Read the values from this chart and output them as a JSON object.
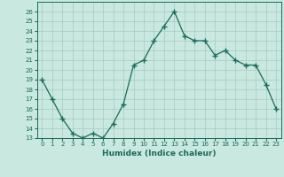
{
  "x": [
    0,
    1,
    2,
    3,
    4,
    5,
    6,
    7,
    8,
    9,
    10,
    11,
    12,
    13,
    14,
    15,
    16,
    17,
    18,
    19,
    20,
    21,
    22,
    23
  ],
  "y": [
    19,
    17,
    15,
    13.5,
    13,
    13.5,
    13,
    14.5,
    16.5,
    20.5,
    21,
    23,
    24.5,
    26,
    23.5,
    23,
    23,
    21.5,
    22,
    21,
    20.5,
    20.5,
    18.5,
    16
  ],
  "xlabel": "Humidex (Indice chaleur)",
  "ylim": [
    13,
    27
  ],
  "xlim": [
    -0.5,
    23.5
  ],
  "yticks": [
    13,
    14,
    15,
    16,
    17,
    18,
    19,
    20,
    21,
    22,
    23,
    24,
    25,
    26
  ],
  "xtick_labels": [
    "0",
    "1",
    "2",
    "3",
    "4",
    "5",
    "6",
    "7",
    "8",
    "9",
    "10",
    "11",
    "12",
    "13",
    "14",
    "15",
    "16",
    "17",
    "18",
    "19",
    "20",
    "21",
    "22",
    "23"
  ],
  "line_color": "#1a6b5a",
  "bg_color": "#c8e8e0",
  "grid_color": "#a8c8c0",
  "marker": "+",
  "marker_size": 4,
  "linewidth": 0.9,
  "tick_fontsize": 5,
  "xlabel_fontsize": 6.5
}
